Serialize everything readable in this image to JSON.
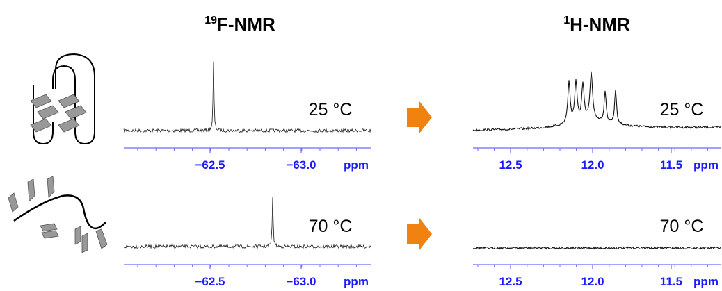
{
  "figure": {
    "titles": [
      {
        "sup": "19",
        "text": "F-NMR"
      },
      {
        "sup": "1",
        "text": "H-NMR"
      }
    ],
    "panels": [
      {
        "temperature": "25 °C",
        "ticks": [
          "−62.5",
          "−63.0"
        ],
        "unit": "ppm"
      },
      {
        "temperature": "25 °C",
        "ticks": [
          "12.5",
          "12.0",
          "11.5"
        ],
        "unit": "ppm"
      },
      {
        "temperature": "70 °C",
        "ticks": [
          "−62.5",
          "−63.0"
        ],
        "unit": "ppm"
      },
      {
        "temperature": "70 °C",
        "ticks": [
          "12.5",
          "12.0",
          "11.5"
        ],
        "unit": "ppm"
      }
    ]
  }
}
